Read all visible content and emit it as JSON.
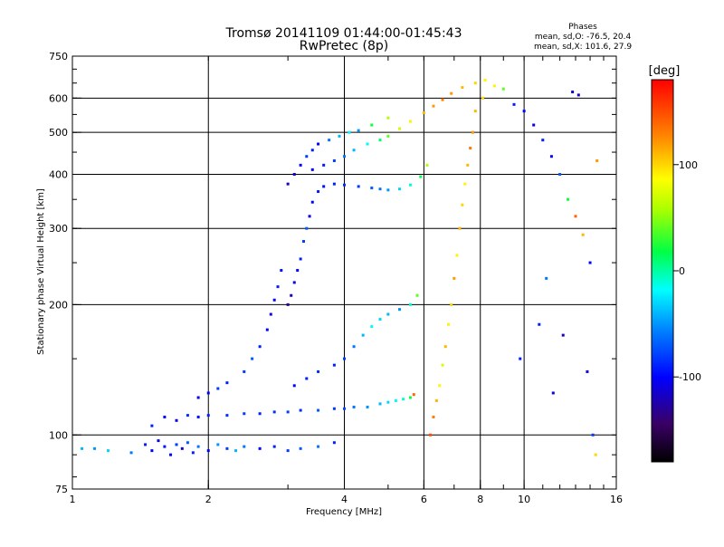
{
  "chart_data": {
    "type": "scatter",
    "title": "Tromsø 20141109 01:44:00-01:45:43",
    "subtitle": "RwPretec (8p)",
    "xlabel": "Frequency [MHz]",
    "ylabel": "Stationary phase Virtual Height [km]",
    "x_scale": "log",
    "y_scale": "log",
    "xlim": [
      1,
      16
    ],
    "ylim": [
      75,
      750
    ],
    "x_ticks": [
      {
        "value": 1,
        "label": "1"
      },
      {
        "value": 2,
        "label": "2"
      },
      {
        "value": 4,
        "label": "4"
      },
      {
        "value": 6,
        "label": "6"
      },
      {
        "value": 8,
        "label": "8"
      },
      {
        "value": 10,
        "label": "10"
      },
      {
        "value": 16,
        "label": "16"
      }
    ],
    "y_ticks": [
      {
        "value": 75,
        "label": "75"
      },
      {
        "value": 100,
        "label": "100"
      },
      {
        "value": 200,
        "label": "200"
      },
      {
        "value": 300,
        "label": "300"
      },
      {
        "value": 400,
        "label": "400"
      },
      {
        "value": 500,
        "label": "500"
      },
      {
        "value": 600,
        "label": "600"
      },
      {
        "value": 750,
        "label": "750"
      }
    ],
    "grid_x": [
      2,
      4,
      6,
      8,
      10
    ],
    "grid_y": [
      100,
      200,
      300,
      400,
      500,
      600
    ],
    "phases_header": "Phases",
    "phases_lines": [
      "mean, sd,O: -76.5, 20.4",
      "mean, sd,X: 101.6, 27.9"
    ],
    "colorbar": {
      "label": "[deg]",
      "range": [
        -180,
        180
      ],
      "ticks": [
        {
          "value": 100,
          "label": "100"
        },
        {
          "value": 0,
          "label": "0"
        },
        {
          "value": -100,
          "label": "-100"
        }
      ]
    },
    "traces": [
      {
        "name": "",
        "points": [
          [
            1.05,
            93,
            -40
          ],
          [
            1.12,
            93,
            -50
          ],
          [
            1.2,
            92,
            -30
          ],
          [
            1.35,
            91,
            -60
          ],
          [
            1.45,
            95,
            -90
          ],
          [
            1.5,
            92,
            -100
          ],
          [
            1.55,
            97,
            -110
          ],
          [
            1.6,
            94,
            -95
          ],
          [
            1.65,
            90,
            -100
          ],
          [
            1.7,
            95,
            -80
          ],
          [
            1.75,
            93,
            -120
          ],
          [
            1.8,
            96,
            -70
          ],
          [
            1.85,
            91,
            -90
          ],
          [
            1.9,
            94,
            -60
          ],
          [
            2.0,
            92,
            -100
          ],
          [
            2.1,
            95,
            -50
          ],
          [
            2.2,
            93,
            -80
          ],
          [
            2.3,
            92,
            -40
          ],
          [
            2.4,
            94,
            -60
          ],
          [
            2.6,
            93,
            -100
          ],
          [
            2.8,
            94,
            -90
          ],
          [
            3.0,
            92,
            -80
          ],
          [
            3.2,
            93,
            -70
          ],
          [
            3.5,
            94,
            -60
          ],
          [
            3.8,
            96,
            -90
          ]
        ]
      },
      {
        "name": "",
        "points": [
          [
            1.5,
            105,
            -90
          ],
          [
            1.6,
            110,
            -100
          ],
          [
            1.7,
            108,
            -110
          ],
          [
            1.8,
            111,
            -85
          ],
          [
            1.9,
            110,
            -95
          ],
          [
            2.0,
            111,
            -90
          ],
          [
            2.2,
            111,
            -85
          ],
          [
            2.4,
            112,
            -80
          ],
          [
            2.6,
            112,
            -90
          ],
          [
            2.8,
            113,
            -85
          ],
          [
            3.0,
            113,
            -80
          ],
          [
            3.2,
            114,
            -85
          ],
          [
            3.5,
            114,
            -70
          ],
          [
            3.8,
            115,
            -80
          ],
          [
            4.0,
            115,
            -75
          ],
          [
            4.2,
            116,
            -60
          ],
          [
            4.5,
            116,
            -50
          ],
          [
            4.8,
            118,
            -40
          ],
          [
            5.0,
            119,
            -30
          ],
          [
            5.2,
            120,
            -20
          ],
          [
            5.4,
            121,
            -10
          ],
          [
            5.6,
            122,
            20
          ],
          [
            5.7,
            124,
            140
          ]
        ]
      },
      {
        "name": "",
        "points": [
          [
            1.9,
            122,
            -110
          ],
          [
            2.0,
            125,
            -100
          ],
          [
            2.1,
            128,
            -80
          ],
          [
            2.2,
            132,
            -90
          ],
          [
            2.4,
            140,
            -80
          ],
          [
            2.5,
            150,
            -70
          ],
          [
            2.6,
            160,
            -90
          ],
          [
            2.7,
            175,
            -100
          ],
          [
            2.75,
            190,
            -110
          ],
          [
            2.8,
            205,
            -100
          ],
          [
            2.85,
            220,
            -90
          ],
          [
            2.9,
            240,
            -95
          ]
        ]
      },
      {
        "name": "",
        "points": [
          [
            3.0,
            200,
            -130
          ],
          [
            3.05,
            210,
            -120
          ],
          [
            3.1,
            225,
            -110
          ],
          [
            3.15,
            240,
            -100
          ],
          [
            3.2,
            255,
            -90
          ],
          [
            3.25,
            280,
            -80
          ],
          [
            3.3,
            300,
            -70
          ],
          [
            3.35,
            320,
            -110
          ],
          [
            3.4,
            345,
            -100
          ],
          [
            3.5,
            365,
            -90
          ],
          [
            3.6,
            375,
            -95
          ],
          [
            3.8,
            380,
            -90
          ],
          [
            4.0,
            378,
            -85
          ],
          [
            4.3,
            375,
            -80
          ],
          [
            4.6,
            372,
            -70
          ],
          [
            4.8,
            370,
            -60
          ],
          [
            5.0,
            368,
            -50
          ],
          [
            5.3,
            370,
            -30
          ],
          [
            5.6,
            378,
            -10
          ],
          [
            5.9,
            395,
            20
          ],
          [
            6.1,
            420,
            60
          ]
        ]
      },
      {
        "name": "",
        "points": [
          [
            3.1,
            130,
            -100
          ],
          [
            3.3,
            135,
            -90
          ],
          [
            3.5,
            140,
            -85
          ],
          [
            3.8,
            145,
            -90
          ],
          [
            4.0,
            150,
            -80
          ],
          [
            4.2,
            160,
            -60
          ],
          [
            4.4,
            170,
            -40
          ],
          [
            4.6,
            178,
            -20
          ],
          [
            4.8,
            185,
            -30
          ],
          [
            5.0,
            190,
            -40
          ],
          [
            5.3,
            195,
            -50
          ],
          [
            5.6,
            200,
            -10
          ],
          [
            5.8,
            210,
            40
          ]
        ]
      },
      {
        "name": "",
        "points": [
          [
            3.4,
            410,
            -100
          ],
          [
            3.6,
            420,
            -90
          ],
          [
            3.8,
            430,
            -80
          ],
          [
            4.0,
            440,
            -60
          ],
          [
            4.2,
            455,
            -40
          ],
          [
            4.5,
            470,
            -20
          ],
          [
            4.8,
            480,
            10
          ],
          [
            5.0,
            490,
            40
          ],
          [
            5.3,
            510,
            70
          ],
          [
            5.6,
            530,
            90
          ],
          [
            6.0,
            555,
            110
          ],
          [
            6.3,
            575,
            120
          ],
          [
            6.6,
            595,
            130
          ],
          [
            6.9,
            615,
            120
          ],
          [
            7.3,
            635,
            110
          ],
          [
            7.8,
            650,
            100
          ],
          [
            8.2,
            660,
            90
          ]
        ]
      },
      {
        "name": "",
        "points": [
          [
            3.0,
            380,
            -120
          ],
          [
            3.1,
            400,
            -110
          ],
          [
            3.2,
            420,
            -100
          ],
          [
            3.3,
            440,
            -80
          ],
          [
            3.4,
            455,
            -90
          ],
          [
            3.5,
            470,
            -100
          ],
          [
            3.7,
            480,
            -60
          ],
          [
            3.9,
            490,
            -40
          ],
          [
            4.1,
            500,
            -20
          ],
          [
            4.3,
            505,
            -50
          ],
          [
            4.6,
            520,
            20
          ],
          [
            5.0,
            540,
            60
          ]
        ]
      },
      {
        "name": "",
        "points": [
          [
            6.2,
            100,
            150
          ],
          [
            6.3,
            110,
            130
          ],
          [
            6.4,
            120,
            110
          ],
          [
            6.5,
            130,
            90
          ],
          [
            6.6,
            145,
            70
          ],
          [
            6.7,
            160,
            110
          ],
          [
            6.8,
            180,
            90
          ],
          [
            6.9,
            200,
            100
          ],
          [
            7.0,
            230,
            120
          ],
          [
            7.1,
            260,
            90
          ],
          [
            7.2,
            300,
            110
          ],
          [
            7.3,
            340,
            100
          ],
          [
            7.4,
            380,
            90
          ],
          [
            7.5,
            420,
            110
          ],
          [
            7.6,
            460,
            130
          ],
          [
            7.7,
            500,
            120
          ]
        ]
      },
      {
        "name": "",
        "points": [
          [
            7.8,
            560,
            110
          ],
          [
            8.1,
            600,
            100
          ],
          [
            8.6,
            640,
            90
          ],
          [
            9.0,
            630,
            40
          ],
          [
            9.5,
            580,
            -90
          ],
          [
            10.0,
            560,
            -100
          ],
          [
            10.5,
            520,
            -110
          ],
          [
            11.0,
            480,
            -90
          ],
          [
            11.5,
            440,
            -100
          ],
          [
            12.0,
            400,
            -70
          ],
          [
            12.5,
            350,
            20
          ],
          [
            13.0,
            320,
            140
          ],
          [
            13.5,
            290,
            110
          ],
          [
            14.0,
            250,
            -100
          ],
          [
            11.2,
            230,
            -60
          ],
          [
            10.8,
            180,
            -90
          ],
          [
            12.2,
            170,
            -120
          ],
          [
            13.8,
            140,
            -110
          ],
          [
            14.2,
            100,
            -80
          ],
          [
            14.4,
            90,
            100
          ],
          [
            9.8,
            150,
            -90
          ],
          [
            11.6,
            125,
            -110
          ],
          [
            14.5,
            430,
            120
          ],
          [
            13.2,
            610,
            -120
          ],
          [
            12.8,
            620,
            -110
          ]
        ]
      }
    ]
  }
}
